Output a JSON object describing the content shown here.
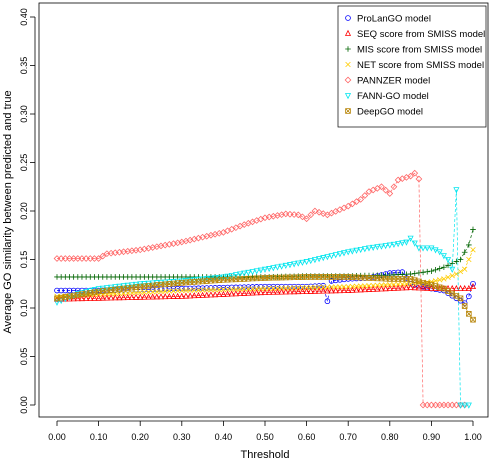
{
  "chart_data": {
    "type": "line",
    "title": "",
    "xlabel": "Threshold",
    "ylabel": "Average GO similarity between predicted and true",
    "xlim": [
      0,
      1
    ],
    "ylim": [
      0,
      0.42
    ],
    "xticks": [
      "0.00",
      "0.10",
      "0.20",
      "0.30",
      "0.40",
      "0.50",
      "0.60",
      "0.70",
      "0.80",
      "0.90",
      "1.00"
    ],
    "yticks": [
      "0.00",
      "0.05",
      "0.10",
      "0.15",
      "0.20",
      "0.25",
      "0.30",
      "0.35",
      "0.40"
    ],
    "legend_position": "top-right",
    "grid": false,
    "series": [
      {
        "name": "ProLanGO model",
        "color": "#0000ff",
        "marker": "circle",
        "points": [
          [
            0,
            0.118
          ],
          [
            0.05,
            0.118
          ],
          [
            0.1,
            0.118
          ],
          [
            0.2,
            0.119
          ],
          [
            0.3,
            0.12
          ],
          [
            0.4,
            0.121
          ],
          [
            0.5,
            0.122
          ],
          [
            0.6,
            0.122
          ],
          [
            0.64,
            0.123
          ],
          [
            0.65,
            0.107
          ],
          [
            0.66,
            0.128
          ],
          [
            0.7,
            0.13
          ],
          [
            0.75,
            0.131
          ],
          [
            0.8,
            0.136
          ],
          [
            0.83,
            0.137
          ],
          [
            0.85,
            0.125
          ],
          [
            0.88,
            0.122
          ],
          [
            0.9,
            0.12
          ],
          [
            0.93,
            0.118
          ],
          [
            0.96,
            0.11
          ],
          [
            0.98,
            0.105
          ],
          [
            0.99,
            0.112
          ],
          [
            1.0,
            0.125
          ]
        ]
      },
      {
        "name": "SEQ score from SMISS model",
        "color": "#ff0000",
        "marker": "triangle-up",
        "points": [
          [
            0,
            0.109
          ],
          [
            0.1,
            0.11
          ],
          [
            0.2,
            0.111
          ],
          [
            0.3,
            0.112
          ],
          [
            0.4,
            0.114
          ],
          [
            0.5,
            0.116
          ],
          [
            0.6,
            0.117
          ],
          [
            0.7,
            0.118
          ],
          [
            0.8,
            0.12
          ],
          [
            0.85,
            0.121
          ],
          [
            0.9,
            0.12
          ],
          [
            0.95,
            0.12
          ],
          [
            0.99,
            0.12
          ],
          [
            1.0,
            0.122
          ]
        ]
      },
      {
        "name": "MIS score from SMISS model",
        "color": "#006400",
        "marker": "plus",
        "points": [
          [
            0,
            0.132
          ],
          [
            0.1,
            0.132
          ],
          [
            0.2,
            0.132
          ],
          [
            0.3,
            0.132
          ],
          [
            0.4,
            0.132
          ],
          [
            0.5,
            0.132
          ],
          [
            0.6,
            0.133
          ],
          [
            0.7,
            0.133
          ],
          [
            0.8,
            0.134
          ],
          [
            0.85,
            0.135
          ],
          [
            0.9,
            0.138
          ],
          [
            0.93,
            0.142
          ],
          [
            0.95,
            0.146
          ],
          [
            0.97,
            0.15
          ],
          [
            0.99,
            0.165
          ],
          [
            1.0,
            0.181
          ]
        ]
      },
      {
        "name": "NET score from SMISS model",
        "color": "#ffcc00",
        "marker": "cross",
        "points": [
          [
            0,
            0.112
          ],
          [
            0.1,
            0.114
          ],
          [
            0.2,
            0.116
          ],
          [
            0.3,
            0.118
          ],
          [
            0.4,
            0.119
          ],
          [
            0.5,
            0.12
          ],
          [
            0.6,
            0.121
          ],
          [
            0.7,
            0.122
          ],
          [
            0.8,
            0.124
          ],
          [
            0.85,
            0.125
          ],
          [
            0.9,
            0.127
          ],
          [
            0.93,
            0.13
          ],
          [
            0.96,
            0.135
          ],
          [
            0.98,
            0.14
          ],
          [
            0.99,
            0.15
          ],
          [
            1.0,
            0.16
          ]
        ]
      },
      {
        "name": "PANNZER model",
        "color": "#ff6666",
        "marker": "diamond",
        "points": [
          [
            0,
            0.151
          ],
          [
            0.05,
            0.151
          ],
          [
            0.1,
            0.151
          ],
          [
            0.12,
            0.156
          ],
          [
            0.2,
            0.16
          ],
          [
            0.3,
            0.168
          ],
          [
            0.4,
            0.178
          ],
          [
            0.45,
            0.186
          ],
          [
            0.5,
            0.193
          ],
          [
            0.55,
            0.197
          ],
          [
            0.58,
            0.196
          ],
          [
            0.6,
            0.192
          ],
          [
            0.62,
            0.2
          ],
          [
            0.65,
            0.196
          ],
          [
            0.7,
            0.205
          ],
          [
            0.73,
            0.212
          ],
          [
            0.75,
            0.22
          ],
          [
            0.78,
            0.225
          ],
          [
            0.8,
            0.218
          ],
          [
            0.82,
            0.232
          ],
          [
            0.85,
            0.236
          ],
          [
            0.86,
            0.239
          ],
          [
            0.87,
            0.233
          ],
          [
            0.88,
            0.0
          ],
          [
            0.92,
            0.0
          ],
          [
            0.96,
            0.0
          ],
          [
            0.98,
            0.0
          ]
        ]
      },
      {
        "name": "FANN-GO model",
        "color": "#00e5ee",
        "marker": "triangle-down",
        "points": [
          [
            0,
            0.106
          ],
          [
            0.05,
            0.115
          ],
          [
            0.1,
            0.12
          ],
          [
            0.2,
            0.125
          ],
          [
            0.3,
            0.128
          ],
          [
            0.4,
            0.132
          ],
          [
            0.5,
            0.14
          ],
          [
            0.6,
            0.148
          ],
          [
            0.65,
            0.153
          ],
          [
            0.7,
            0.158
          ],
          [
            0.75,
            0.162
          ],
          [
            0.8,
            0.165
          ],
          [
            0.84,
            0.168
          ],
          [
            0.85,
            0.172
          ],
          [
            0.87,
            0.162
          ],
          [
            0.9,
            0.162
          ],
          [
            0.92,
            0.158
          ],
          [
            0.94,
            0.15
          ],
          [
            0.95,
            0.14
          ],
          [
            0.96,
            0.222
          ],
          [
            0.97,
            0.0
          ],
          [
            0.98,
            0.0
          ],
          [
            0.99,
            0.0
          ]
        ]
      },
      {
        "name": "DeepGO model",
        "color": "#b8860b",
        "marker": "box-x",
        "points": [
          [
            0,
            0.11
          ],
          [
            0.1,
            0.117
          ],
          [
            0.2,
            0.122
          ],
          [
            0.3,
            0.126
          ],
          [
            0.4,
            0.129
          ],
          [
            0.5,
            0.131
          ],
          [
            0.6,
            0.132
          ],
          [
            0.7,
            0.132
          ],
          [
            0.8,
            0.13
          ],
          [
            0.85,
            0.13
          ],
          [
            0.88,
            0.126
          ],
          [
            0.9,
            0.124
          ],
          [
            0.93,
            0.12
          ],
          [
            0.95,
            0.115
          ],
          [
            0.97,
            0.11
          ],
          [
            0.98,
            0.102
          ],
          [
            0.99,
            0.094
          ],
          [
            1.0,
            0.088
          ]
        ]
      }
    ]
  }
}
